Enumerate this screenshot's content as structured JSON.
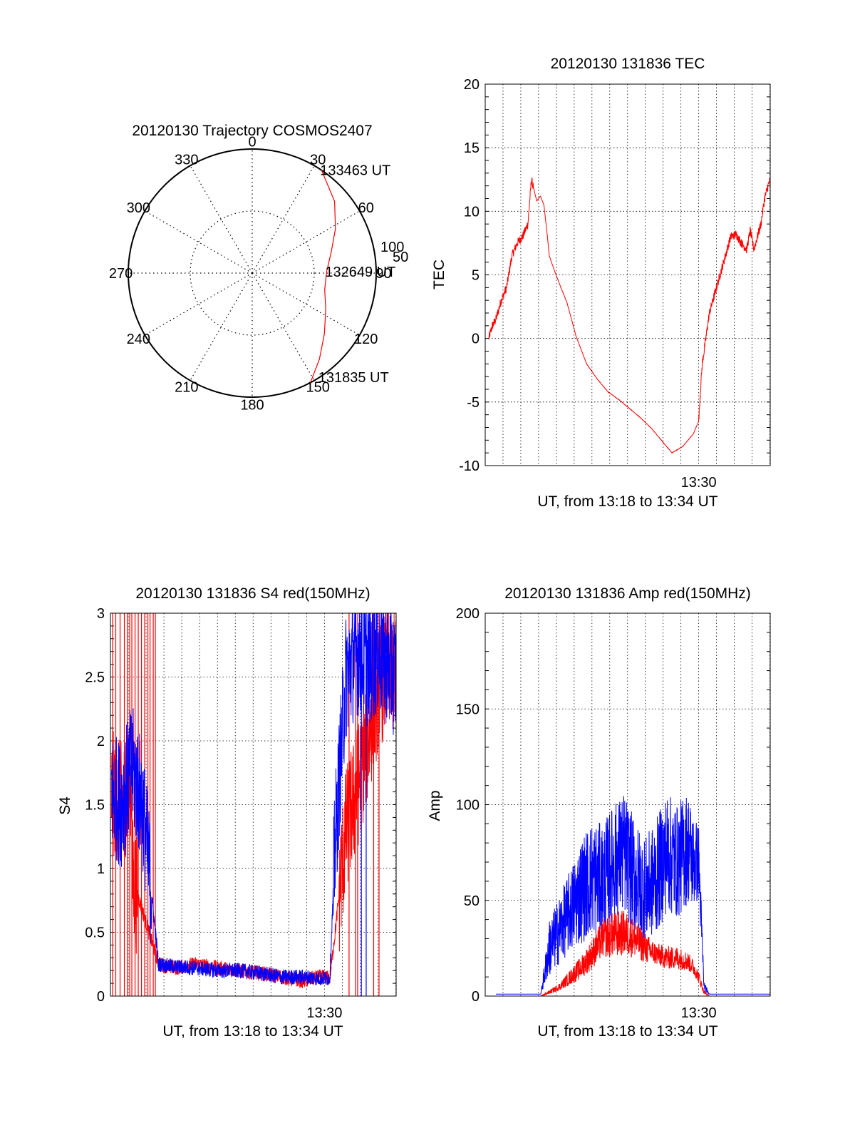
{
  "colors": {
    "red": "#ff0000",
    "blue": "#0000ff",
    "axis": "#000000",
    "grid": "#000000"
  },
  "chart_data": [
    {
      "id": "polar",
      "type": "polar-trajectory",
      "title": "20120130 Trajectory COSMOS2407",
      "azimuth_labels": [
        "0",
        "30",
        "60",
        "90",
        "120",
        "150",
        "180",
        "210",
        "240",
        "270",
        "300",
        "330"
      ],
      "radius_labels": [
        "50",
        "100"
      ],
      "grid": true,
      "trajectory": {
        "color": "red",
        "points": [
          [
            34,
            100
          ],
          [
            49,
            88
          ],
          [
            62,
            76
          ],
          [
            75,
            66
          ],
          [
            89,
            60
          ],
          [
            103,
            60
          ],
          [
            116,
            66
          ],
          [
            130,
            76
          ],
          [
            142,
            88
          ],
          [
            152,
            100
          ]
        ]
      },
      "time_labels": [
        {
          "text": "133463 UT",
          "az": 34,
          "r": 100
        },
        {
          "text": "132649 UT",
          "az": 89,
          "r": 60
        },
        {
          "text": "131835 UT",
          "az": 147,
          "r": 100
        }
      ]
    },
    {
      "id": "tec",
      "type": "line",
      "title": "20120130 131836 TEC",
      "xlabel": "UT, from 13:18 to 13:34 UT",
      "ylabel": "TEC",
      "xlim": [
        13.3,
        13.567
      ],
      "ylim": [
        -10,
        20
      ],
      "yticks": [
        -10,
        -5,
        0,
        5,
        10,
        15,
        20
      ],
      "xtick_labels": [
        {
          "x": 13.5,
          "label": "13:30"
        }
      ],
      "grid": true,
      "series": [
        {
          "color": "red",
          "noisy": true,
          "x": [
            13.3033,
            13.3067,
            13.31,
            13.315,
            13.32,
            13.325,
            13.33,
            13.335,
            13.34,
            13.3433,
            13.3483,
            13.3517,
            13.355,
            13.3583,
            13.36,
            13.365,
            13.37,
            13.3767,
            13.385,
            13.395,
            13.405,
            13.415,
            13.425,
            13.435,
            13.445,
            13.455,
            13.465,
            13.475,
            13.485,
            13.495,
            13.5,
            13.5017,
            13.5033,
            13.5067,
            13.51,
            13.515,
            13.52,
            13.525,
            13.53,
            13.535,
            13.54,
            13.545,
            13.5483,
            13.5517,
            13.555,
            13.5583,
            13.5617,
            13.565,
            13.567
          ],
          "y": [
            0.0,
            1.0,
            1.5,
            3.0,
            4.0,
            6.5,
            7.5,
            8.0,
            9.0,
            12.5,
            10.8,
            11.2,
            10.5,
            8.0,
            6.5,
            5.3,
            4.2,
            2.8,
            0.2,
            -2.0,
            -3.2,
            -4.2,
            -4.8,
            -5.5,
            -6.2,
            -7.0,
            -8.0,
            -9.0,
            -8.5,
            -7.5,
            -6.5,
            -4.0,
            -2.0,
            0.0,
            2.0,
            3.5,
            5.0,
            6.5,
            8.0,
            8.2,
            7.5,
            7.0,
            8.5,
            7.0,
            8.0,
            9.0,
            11.0,
            12.0,
            12.5
          ]
        }
      ]
    },
    {
      "id": "s4",
      "type": "line",
      "title": "20120130 131836 S4 red(150MHz)",
      "xlabel": "UT, from 13:18 to 13:34 UT",
      "ylabel": "S4",
      "xlim": [
        13.3,
        13.567
      ],
      "ylim": [
        0,
        3
      ],
      "yticks": [
        0,
        0.5,
        1,
        1.5,
        2,
        2.5,
        3
      ],
      "xtick_labels": [
        {
          "x": 13.5,
          "label": "13:30"
        }
      ],
      "grid": true,
      "series": [
        {
          "color": "red",
          "noisy": true,
          "x": [
            13.301,
            13.31,
            13.32,
            13.3,
            13.345,
            13.36,
            13.38,
            13.4,
            13.42,
            13.44,
            13.46,
            13.48,
            13.495,
            13.505,
            13.51,
            13.52,
            13.53,
            13.54,
            13.55,
            13.56,
            13.567
          ],
          "y": [
            1.6,
            1.5,
            1.7,
            1.5,
            0.25,
            0.22,
            0.25,
            0.22,
            0.2,
            0.18,
            0.15,
            0.12,
            0.15,
            0.14,
            0.5,
            1.3,
            1.6,
            2.0,
            2.4,
            2.6,
            2.5
          ],
          "spikes_x": [
            13.302,
            13.305,
            13.309,
            13.313,
            13.316,
            13.318,
            13.32,
            13.323,
            13.326,
            13.329,
            13.332,
            13.335,
            13.337,
            13.34,
            13.342,
            13.523,
            13.529,
            13.531,
            13.546,
            13.551
          ],
          "spikes_y": [
            0,
            3
          ]
        },
        {
          "color": "blue",
          "noisy": true,
          "x": [
            13.301,
            13.31,
            13.32,
            13.33,
            13.345,
            13.36,
            13.38,
            13.4,
            13.42,
            13.44,
            13.46,
            13.48,
            13.495,
            13.505,
            13.51,
            13.52,
            13.53,
            13.54,
            13.55,
            13.56,
            13.567
          ],
          "y": [
            1.6,
            1.5,
            1.8,
            1.5,
            0.25,
            0.23,
            0.22,
            0.2,
            0.2,
            0.18,
            0.15,
            0.15,
            0.14,
            0.14,
            1.2,
            2.5,
            2.7,
            2.6,
            2.7,
            2.6,
            2.5
          ],
          "spikes_x": [
            13.5345,
            13.539
          ],
          "spikes_y": [
            0,
            3
          ]
        }
      ]
    },
    {
      "id": "amp",
      "type": "line",
      "title": "20120130 131836 Amp red(150MHz)",
      "xlabel": "UT, from 13:18 to 13:34 UT",
      "ylabel": "Amp",
      "xlim": [
        13.3,
        13.567
      ],
      "ylim": [
        0,
        200
      ],
      "yticks": [
        0,
        50,
        100,
        150,
        200
      ],
      "xtick_labels": [
        {
          "x": 13.5,
          "label": "13:30"
        }
      ],
      "grid": true,
      "series": [
        {
          "color": "blue",
          "noisy": true,
          "x": [
            13.31,
            13.345,
            13.352,
            13.36,
            13.37,
            13.38,
            13.39,
            13.4,
            13.41,
            13.42,
            13.43,
            13.44,
            13.45,
            13.46,
            13.47,
            13.48,
            13.49,
            13.495,
            13.5,
            13.505,
            13.51,
            13.52,
            13.54,
            13.567
          ],
          "y": [
            1,
            1,
            1,
            25,
            35,
            45,
            55,
            62,
            60,
            70,
            75,
            62,
            55,
            62,
            75,
            70,
            78,
            70,
            70,
            5,
            1,
            1,
            1,
            1
          ],
          "amp": [
            0,
            0,
            0,
            15,
            18,
            22,
            28,
            30,
            30,
            30,
            32,
            30,
            28,
            30,
            32,
            30,
            30,
            25,
            20,
            3,
            0,
            0,
            0,
            0
          ]
        },
        {
          "color": "red",
          "noisy": true,
          "x": [
            13.31,
            13.345,
            13.352,
            13.36,
            13.37,
            13.38,
            13.39,
            13.4,
            13.41,
            13.42,
            13.43,
            13.44,
            13.45,
            13.46,
            13.47,
            13.48,
            13.49,
            13.495,
            13.5,
            13.505,
            13.51,
            13.52,
            13.54,
            13.567
          ],
          "y": [
            0,
            0,
            0,
            2,
            5,
            10,
            15,
            22,
            30,
            32,
            33,
            30,
            25,
            22,
            20,
            20,
            18,
            15,
            10,
            2,
            0,
            0,
            0,
            0
          ],
          "amp": [
            0,
            0,
            0,
            1,
            2,
            4,
            6,
            8,
            10,
            12,
            12,
            10,
            8,
            6,
            6,
            6,
            5,
            4,
            3,
            1,
            0,
            0,
            0,
            0
          ]
        }
      ]
    }
  ]
}
